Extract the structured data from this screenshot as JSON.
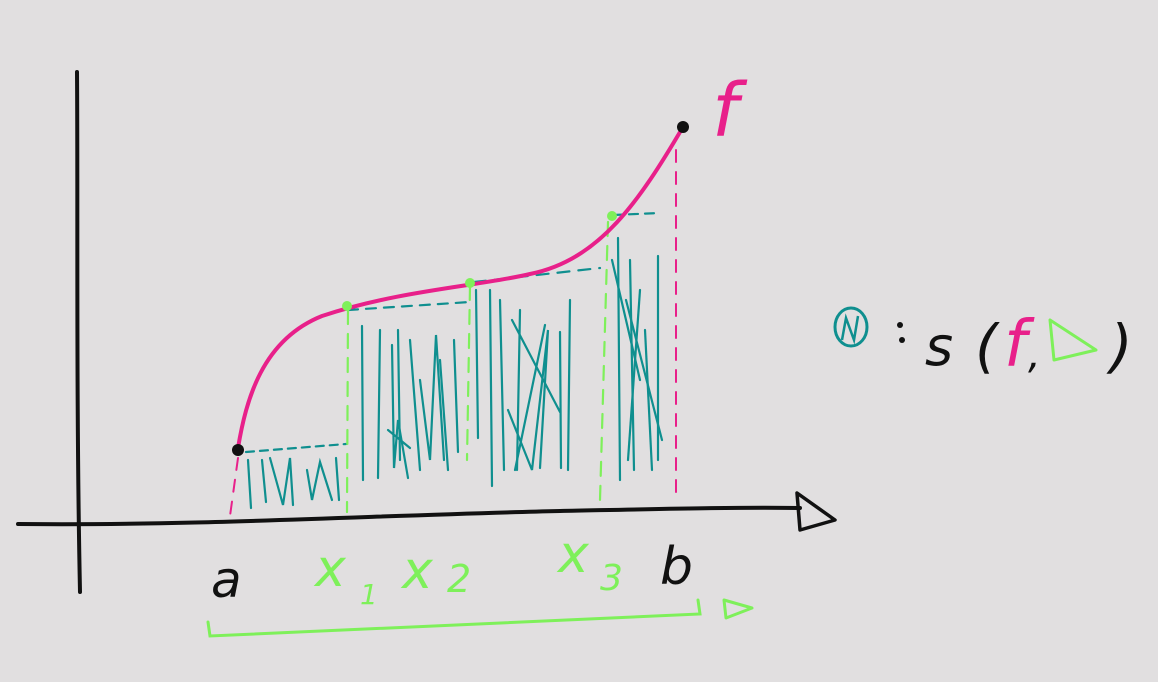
{
  "colors": {
    "background": "#e1dfe0",
    "ink": "#111111",
    "function": "#e8208a",
    "partition": "#7ef05a",
    "hatch": "#0f8f8f"
  },
  "labels": {
    "a": "a",
    "b": "b",
    "x1": "x",
    "x1_sub": "1",
    "x2": "x",
    "x2_sub": "2",
    "x3": "x",
    "x3_sub": "3",
    "f": "f",
    "delta": "Δ",
    "eq_s": "s",
    "eq_open": "(",
    "eq_f": "f",
    "eq_comma": ",",
    "eq_delta": "Δ",
    "eq_close": ")"
  }
}
